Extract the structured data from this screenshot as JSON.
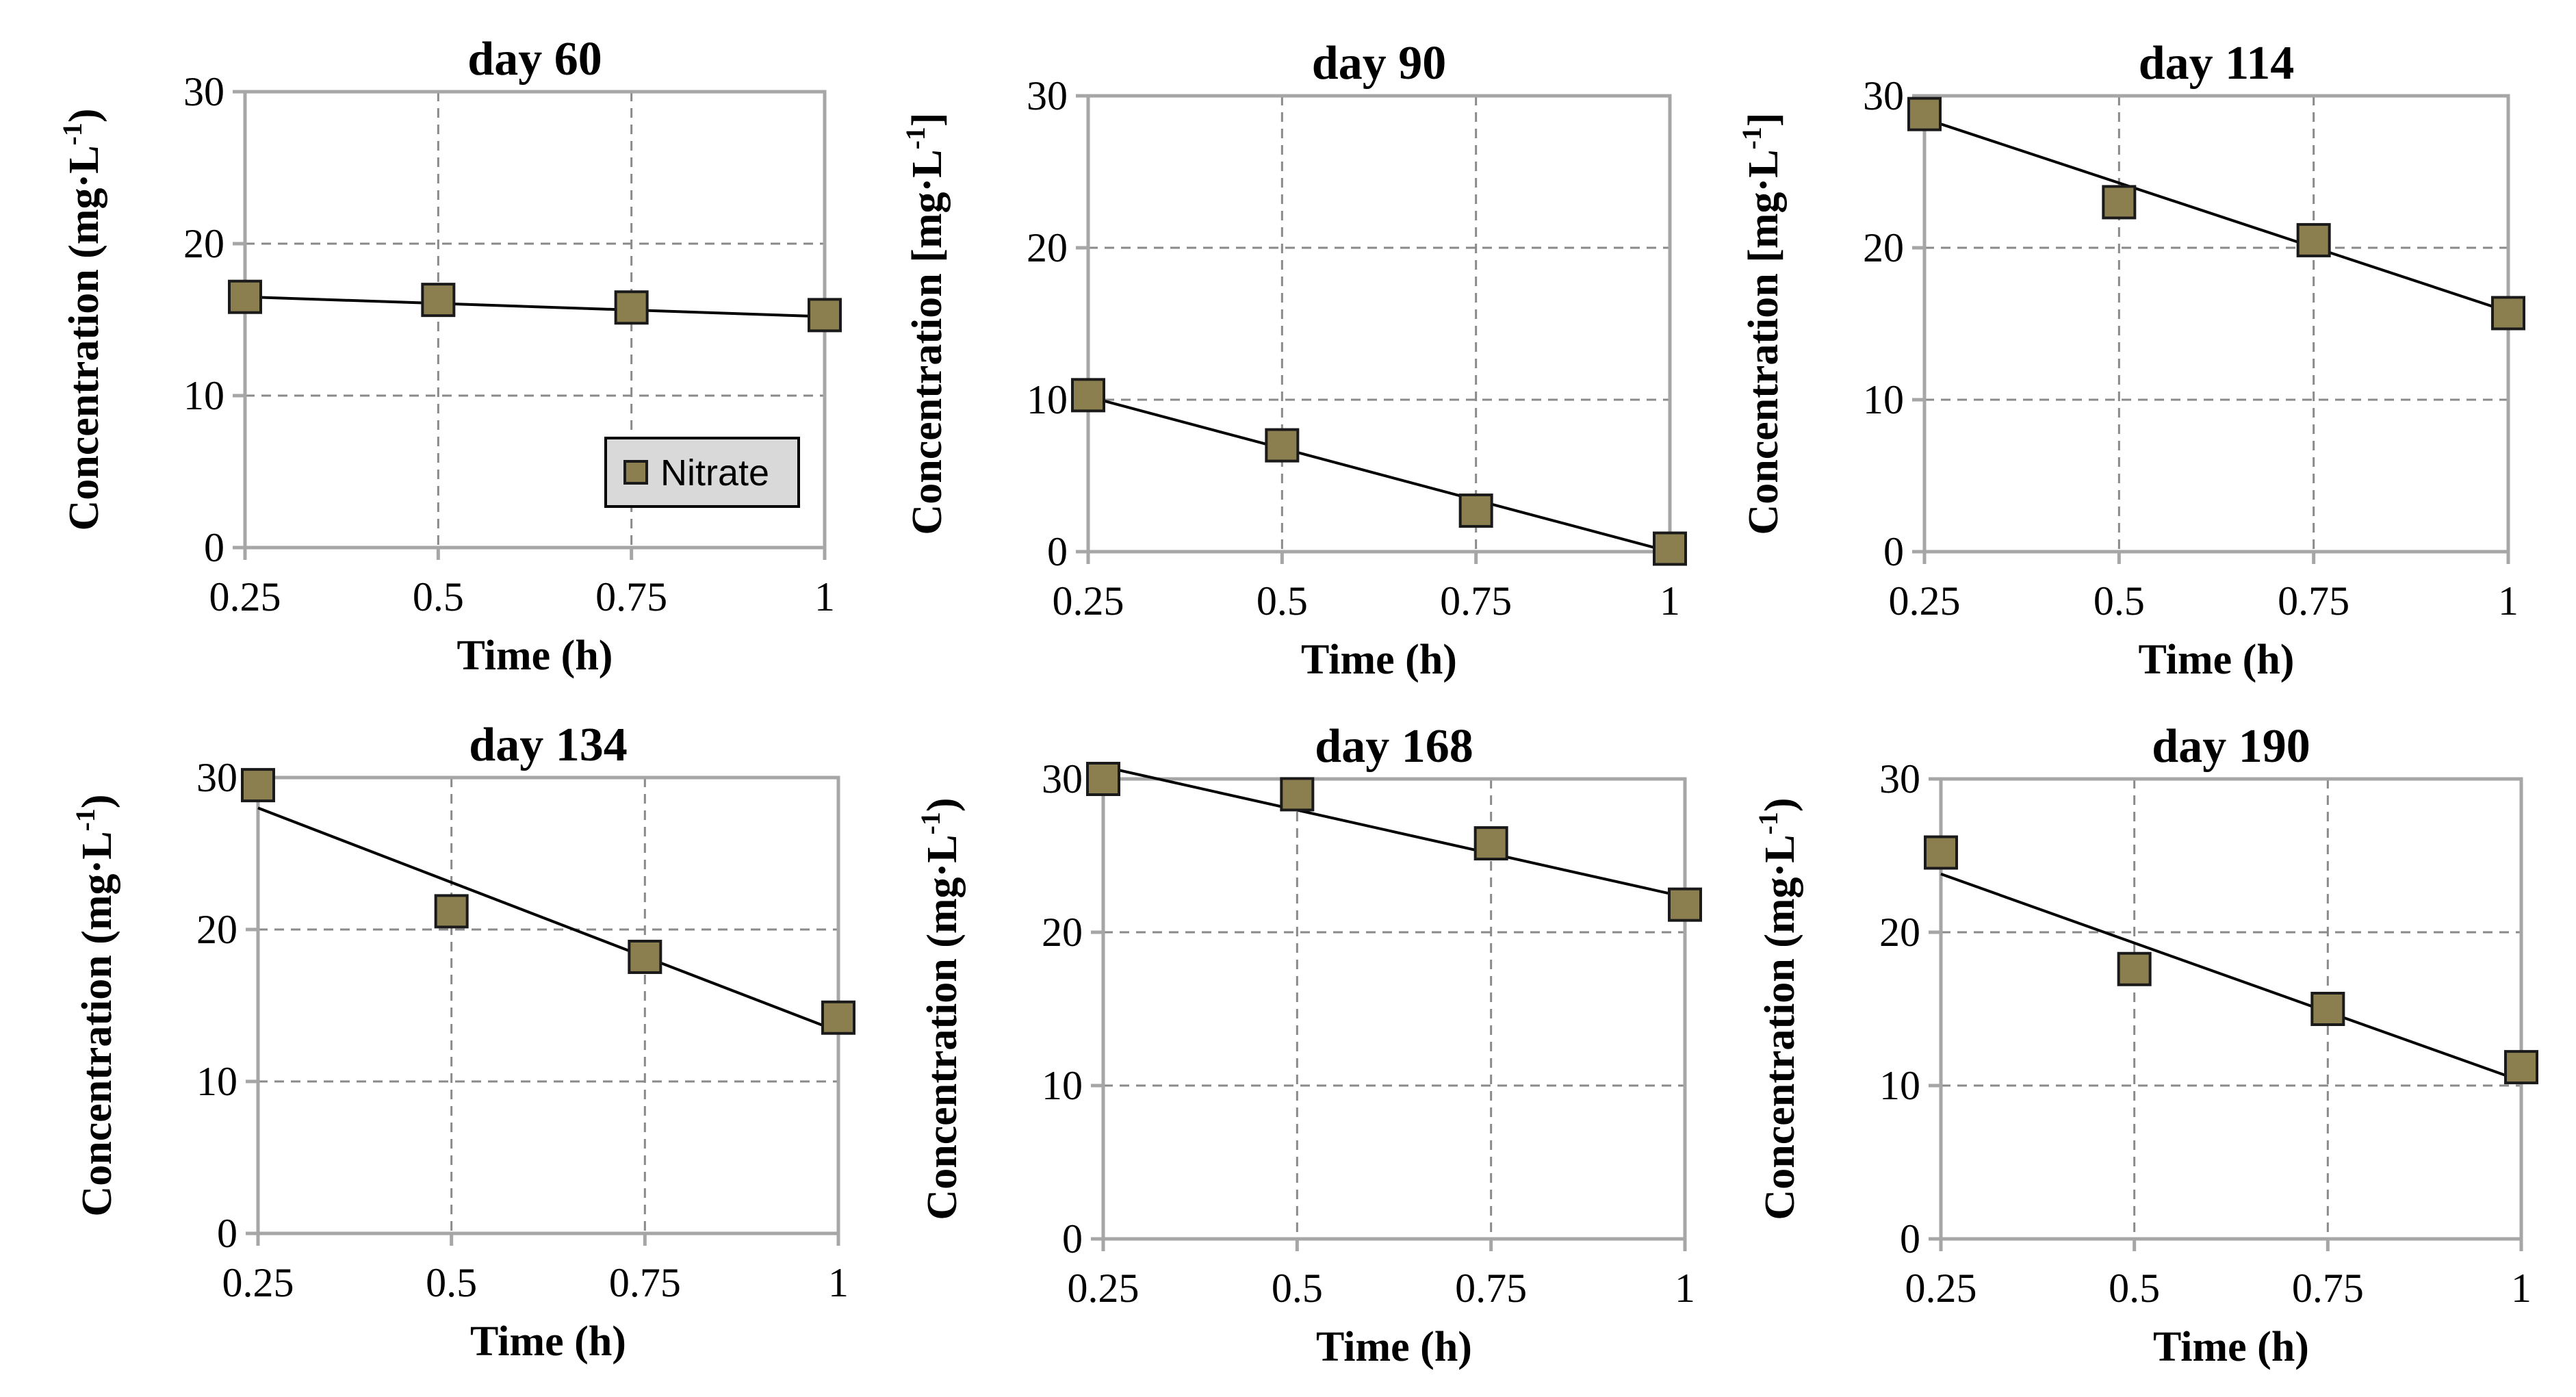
{
  "figure": {
    "marker_color": "#8c7f4f",
    "marker_stroke": "#1a1a1a",
    "line_color": "#000000",
    "grid_color": "#8a8a8a",
    "axis_color": "#a6a6a6",
    "legend_fill": "#d9d9d9"
  },
  "chart_data": [
    {
      "type": "scatter",
      "title": "day 60",
      "xlabel": "Time (h)",
      "ylabel": "Concentration (mg·L",
      "ylabel_sup": "-1",
      "ylabel_close": ")",
      "x": [
        0.25,
        0.5,
        0.75,
        1
      ],
      "x_ticks": [
        "0.25",
        "0.5",
        "0.75",
        "1"
      ],
      "y_ticks": [
        "0",
        "10",
        "20",
        "30"
      ],
      "xlim": [
        0.25,
        1
      ],
      "ylim": [
        0,
        30
      ],
      "grid": true,
      "series": [
        {
          "name": "Nitrate",
          "values": [
            16.5,
            16.3,
            15.8,
            15.3
          ]
        }
      ],
      "trendline": {
        "x": [
          0.25,
          1
        ],
        "y": [
          16.5,
          15.2
        ]
      },
      "legend": {
        "label": "Nitrate",
        "position": "bottom-right"
      }
    },
    {
      "type": "scatter",
      "title": "day 90",
      "xlabel": "Time (h)",
      "ylabel": "Concentration [mg·L",
      "ylabel_sup": "-1",
      "ylabel_close": "]",
      "x": [
        0.25,
        0.5,
        0.75,
        1
      ],
      "x_ticks": [
        "0.25",
        "0.5",
        "0.75",
        "1"
      ],
      "y_ticks": [
        "0",
        "10",
        "20",
        "30"
      ],
      "xlim": [
        0.25,
        1
      ],
      "ylim": [
        0,
        30
      ],
      "grid": true,
      "series": [
        {
          "name": "Nitrate",
          "values": [
            10.3,
            7.0,
            2.7,
            0.2
          ]
        }
      ],
      "trendline": {
        "x": [
          0.25,
          1
        ],
        "y": [
          10.2,
          0
        ]
      }
    },
    {
      "type": "scatter",
      "title": "day 114",
      "xlabel": "Time (h)",
      "ylabel": "Concentration [mg·L",
      "ylabel_sup": "-1",
      "ylabel_close": "]",
      "x": [
        0.25,
        0.5,
        0.75,
        1
      ],
      "x_ticks": [
        "0.25",
        "0.5",
        "0.75",
        "1"
      ],
      "y_ticks": [
        "0",
        "10",
        "20",
        "30"
      ],
      "xlim": [
        0.25,
        1
      ],
      "ylim": [
        0,
        30
      ],
      "grid": true,
      "series": [
        {
          "name": "Nitrate",
          "values": [
            28.8,
            23.0,
            20.5,
            15.7
          ]
        }
      ],
      "trendline": {
        "x": [
          0.25,
          1
        ],
        "y": [
          28.5,
          15.8
        ]
      }
    },
    {
      "type": "scatter",
      "title": "day 134",
      "xlabel": "Time (h)",
      "ylabel": "Concentration (mg·L",
      "ylabel_sup": "-1",
      "ylabel_close": ")",
      "x": [
        0.25,
        0.5,
        0.75,
        1
      ],
      "x_ticks": [
        "0.25",
        "0.5",
        "0.75",
        "1"
      ],
      "y_ticks": [
        "0",
        "10",
        "20",
        "30"
      ],
      "xlim": [
        0.25,
        1
      ],
      "ylim": [
        0,
        30
      ],
      "grid": true,
      "series": [
        {
          "name": "Nitrate",
          "values": [
            29.5,
            21.2,
            18.2,
            14.2
          ]
        }
      ],
      "trendline": {
        "x": [
          0.25,
          1
        ],
        "y": [
          28.0,
          13.3
        ]
      }
    },
    {
      "type": "scatter",
      "title": "day 168",
      "xlabel": "Time (h)",
      "ylabel": "Concentration (mg·L",
      "ylabel_sup": "-1",
      "ylabel_close": ")",
      "x": [
        0.25,
        0.5,
        0.75,
        1
      ],
      "x_ticks": [
        "0.25",
        "0.5",
        "0.75",
        "1"
      ],
      "y_ticks": [
        "0",
        "10",
        "20",
        "30"
      ],
      "xlim": [
        0.25,
        1
      ],
      "ylim": [
        0,
        30
      ],
      "grid": true,
      "series": [
        {
          "name": "Nitrate",
          "values": [
            30.0,
            29.0,
            25.8,
            21.8
          ]
        }
      ],
      "trendline": {
        "x": [
          0.25,
          1
        ],
        "y": [
          30.8,
          22.3
        ]
      }
    },
    {
      "type": "scatter",
      "title": "day 190",
      "xlabel": "Time (h)",
      "ylabel": "Concentration (mg·L",
      "ylabel_sup": "-1",
      "ylabel_close": ")",
      "x": [
        0.25,
        0.5,
        0.75,
        1
      ],
      "x_ticks": [
        "0.25",
        "0.5",
        "0.75",
        "1"
      ],
      "y_ticks": [
        "0",
        "10",
        "20",
        "30"
      ],
      "xlim": [
        0.25,
        1
      ],
      "ylim": [
        0,
        30
      ],
      "grid": true,
      "series": [
        {
          "name": "Nitrate",
          "values": [
            25.2,
            17.6,
            15.0,
            11.2
          ]
        }
      ],
      "trendline": {
        "x": [
          0.25,
          1
        ],
        "y": [
          23.8,
          10.3
        ]
      }
    }
  ]
}
